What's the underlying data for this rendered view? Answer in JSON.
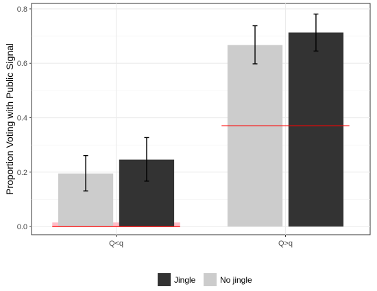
{
  "chart_data": {
    "type": "bar",
    "title": "",
    "xlabel": "",
    "ylabel": "Proportion Voting with Public Signal",
    "categories": [
      "Q<q",
      "Q>q"
    ],
    "ylim": [
      -0.03,
      0.82
    ],
    "yticks": [
      0.0,
      0.2,
      0.4,
      0.6,
      0.8
    ],
    "ytick_labels": [
      "0.0",
      "0.2",
      "0.4",
      "0.6",
      "0.8"
    ],
    "grid": true,
    "legend_position": "bottom",
    "series": [
      {
        "name": "No jingle",
        "color": "#cccccc",
        "values": [
          0.195,
          0.667
        ],
        "error_low": [
          0.131,
          0.598
        ],
        "error_high": [
          0.261,
          0.738
        ]
      },
      {
        "name": "Jingle",
        "color": "#333333",
        "values": [
          0.246,
          0.713
        ],
        "error_low": [
          0.167,
          0.645
        ],
        "error_high": [
          0.327,
          0.781
        ]
      }
    ],
    "reference_lines": [
      {
        "category_index": 0,
        "value": 0.0,
        "color": "#ff0000"
      },
      {
        "category_index": 1,
        "value": 0.37,
        "color": "#ff0000"
      }
    ],
    "reference_bands": [
      {
        "category_index": 0,
        "low": 0.0,
        "high": 0.015,
        "color": "#ffb6c1"
      }
    ],
    "legend": [
      {
        "label": "Jingle",
        "color": "#333333"
      },
      {
        "label": "No jingle",
        "color": "#cccccc"
      }
    ]
  }
}
